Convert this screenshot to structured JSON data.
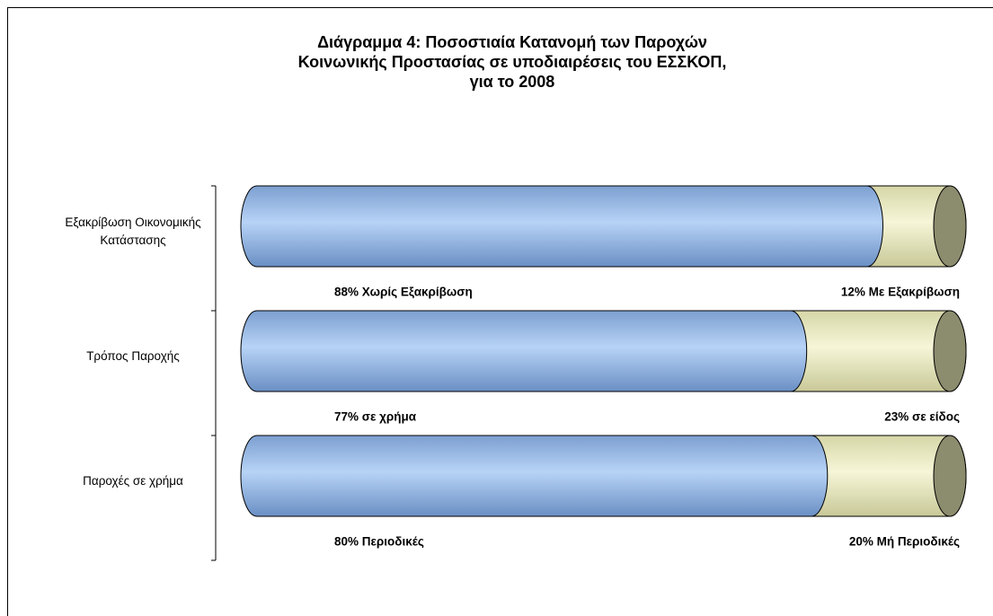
{
  "chart_data": {
    "type": "bar-stacked-cylinder",
    "title": "Διάγραμμα 4: Ποσοστιαία Κατανομή των Παροχών\nΚοινωνικής Προστασίας σε υποδιαιρέσεις του ΕΣΣΚΟΠ,\nγια το 2008",
    "categories": [
      "Εξακρίβωση Οικονομικής\nΚατάστασης",
      "Τρόπος Παροχής",
      "Παροχές σε χρήμα"
    ],
    "series": [
      {
        "color": "#9dbfea",
        "values": [
          88,
          77,
          80
        ],
        "value_labels": [
          "88% Χωρίς Εξακρίβωση",
          "77% σε χρήμα",
          "80% Περιοδικές"
        ]
      },
      {
        "color": "#f0f0c8",
        "values": [
          12,
          23,
          20
        ],
        "value_labels": [
          "12% Με Εξακρίβωση",
          "23% σε είδος",
          "20% Μή Περιοδικές"
        ]
      }
    ],
    "xlim": [
      0,
      100
    ]
  }
}
